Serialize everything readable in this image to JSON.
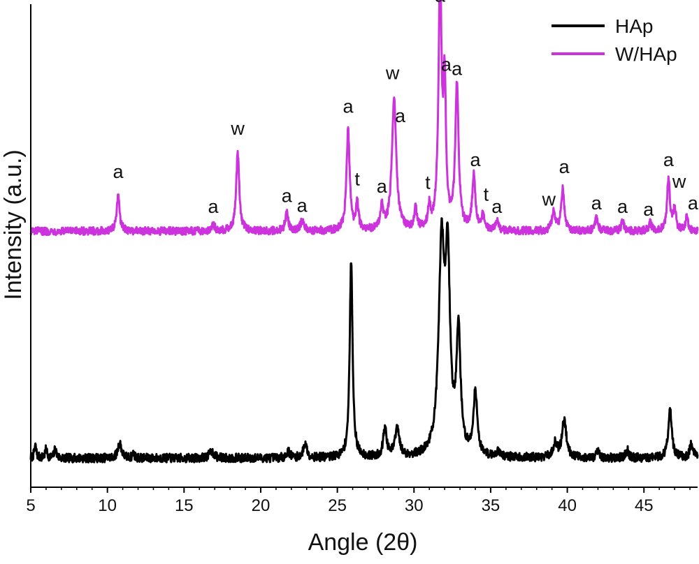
{
  "chart_data": {
    "type": "line",
    "xlabel": "Angle (2θ)",
    "ylabel": "Intensity (a.u.)",
    "xlim": [
      5,
      48.5
    ],
    "ylim": [
      0,
      1
    ],
    "xticks": [
      5,
      10,
      15,
      20,
      25,
      30,
      35,
      40,
      45
    ],
    "grid": false,
    "legend": "top-right",
    "series": [
      {
        "name": "HAp",
        "color": "#000000",
        "baseline": 0.06,
        "noise": 0.009,
        "peaks": [
          {
            "x": 5.3,
            "h": 0.025,
            "w": 0.08
          },
          {
            "x": 6.0,
            "h": 0.018,
            "w": 0.08
          },
          {
            "x": 6.6,
            "h": 0.02,
            "w": 0.08
          },
          {
            "x": 10.8,
            "h": 0.032,
            "w": 0.14
          },
          {
            "x": 11.7,
            "h": 0.01,
            "w": 0.08
          },
          {
            "x": 16.8,
            "h": 0.014,
            "w": 0.18
          },
          {
            "x": 21.8,
            "h": 0.013,
            "w": 0.14
          },
          {
            "x": 22.9,
            "h": 0.03,
            "w": 0.14
          },
          {
            "x": 25.9,
            "h": 0.41,
            "w": 0.11
          },
          {
            "x": 28.1,
            "h": 0.06,
            "w": 0.13
          },
          {
            "x": 28.9,
            "h": 0.058,
            "w": 0.17
          },
          {
            "x": 31.8,
            "h": 0.42,
            "w": 0.22
          },
          {
            "x": 32.2,
            "h": 0.37,
            "w": 0.18
          },
          {
            "x": 32.9,
            "h": 0.25,
            "w": 0.16
          },
          {
            "x": 34.0,
            "h": 0.13,
            "w": 0.15
          },
          {
            "x": 35.5,
            "h": 0.014,
            "w": 0.12
          },
          {
            "x": 39.2,
            "h": 0.028,
            "w": 0.16
          },
          {
            "x": 39.8,
            "h": 0.078,
            "w": 0.17
          },
          {
            "x": 42.0,
            "h": 0.012,
            "w": 0.11
          },
          {
            "x": 43.9,
            "h": 0.018,
            "w": 0.11
          },
          {
            "x": 46.7,
            "h": 0.1,
            "w": 0.14
          },
          {
            "x": 48.1,
            "h": 0.03,
            "w": 0.12
          }
        ]
      },
      {
        "name": "W/HAp",
        "color": "#cc33dd",
        "baseline": 0.53,
        "noise": 0.008,
        "peaks": [
          {
            "x": 10.7,
            "h": 0.07,
            "w": 0.12
          },
          {
            "x": 16.9,
            "h": 0.012,
            "w": 0.14
          },
          {
            "x": 18.5,
            "h": 0.16,
            "w": 0.12
          },
          {
            "x": 21.7,
            "h": 0.04,
            "w": 0.11
          },
          {
            "x": 22.7,
            "h": 0.02,
            "w": 0.15
          },
          {
            "x": 25.7,
            "h": 0.21,
            "w": 0.12
          },
          {
            "x": 26.3,
            "h": 0.055,
            "w": 0.1
          },
          {
            "x": 27.9,
            "h": 0.045,
            "w": 0.12
          },
          {
            "x": 28.7,
            "h": 0.27,
            "w": 0.17
          },
          {
            "x": 30.1,
            "h": 0.045,
            "w": 0.1
          },
          {
            "x": 31.0,
            "h": 0.045,
            "w": 0.1
          },
          {
            "x": 31.7,
            "h": 0.52,
            "w": 0.12
          },
          {
            "x": 32.0,
            "h": 0.28,
            "w": 0.1
          },
          {
            "x": 32.8,
            "h": 0.3,
            "w": 0.13
          },
          {
            "x": 33.9,
            "h": 0.115,
            "w": 0.12
          },
          {
            "x": 34.5,
            "h": 0.03,
            "w": 0.1
          },
          {
            "x": 35.4,
            "h": 0.02,
            "w": 0.1
          },
          {
            "x": 39.1,
            "h": 0.04,
            "w": 0.12
          },
          {
            "x": 39.7,
            "h": 0.085,
            "w": 0.12
          },
          {
            "x": 41.9,
            "h": 0.025,
            "w": 0.12
          },
          {
            "x": 43.6,
            "h": 0.02,
            "w": 0.1
          },
          {
            "x": 45.4,
            "h": 0.018,
            "w": 0.1
          },
          {
            "x": 46.6,
            "h": 0.11,
            "w": 0.11
          },
          {
            "x": 47.0,
            "h": 0.045,
            "w": 0.1
          },
          {
            "x": 47.8,
            "h": 0.03,
            "w": 0.1
          }
        ]
      }
    ],
    "annotations": [
      {
        "text": "a",
        "x": 10.7,
        "y": 0.64
      },
      {
        "text": "a",
        "x": 16.9,
        "y": 0.568
      },
      {
        "text": "w",
        "x": 18.5,
        "y": 0.73
      },
      {
        "text": "a",
        "x": 21.7,
        "y": 0.59
      },
      {
        "text": "a",
        "x": 22.7,
        "y": 0.57
      },
      {
        "text": "a",
        "x": 25.7,
        "y": 0.775
      },
      {
        "text": "t",
        "x": 26.3,
        "y": 0.625
      },
      {
        "text": "a",
        "x": 27.9,
        "y": 0.61
      },
      {
        "text": "w",
        "x": 28.6,
        "y": 0.845
      },
      {
        "text": "a",
        "x": 29.1,
        "y": 0.756
      },
      {
        "text": "t",
        "x": 30.9,
        "y": 0.618
      },
      {
        "text": "a",
        "x": 31.7,
        "y": 1.005
      },
      {
        "text": "a",
        "x": 32.1,
        "y": 0.862
      },
      {
        "text": "a",
        "x": 32.8,
        "y": 0.853
      },
      {
        "text": "a",
        "x": 34.0,
        "y": 0.665
      },
      {
        "text": "t",
        "x": 34.7,
        "y": 0.593
      },
      {
        "text": "a",
        "x": 35.4,
        "y": 0.568
      },
      {
        "text": "w",
        "x": 38.8,
        "y": 0.583
      },
      {
        "text": "a",
        "x": 39.8,
        "y": 0.65
      },
      {
        "text": "a",
        "x": 41.9,
        "y": 0.575
      },
      {
        "text": "a",
        "x": 43.6,
        "y": 0.568
      },
      {
        "text": "a",
        "x": 45.3,
        "y": 0.562
      },
      {
        "text": "a",
        "x": 46.6,
        "y": 0.665
      },
      {
        "text": "w",
        "x": 47.3,
        "y": 0.62
      },
      {
        "text": "a",
        "x": 48.2,
        "y": 0.575
      }
    ]
  }
}
